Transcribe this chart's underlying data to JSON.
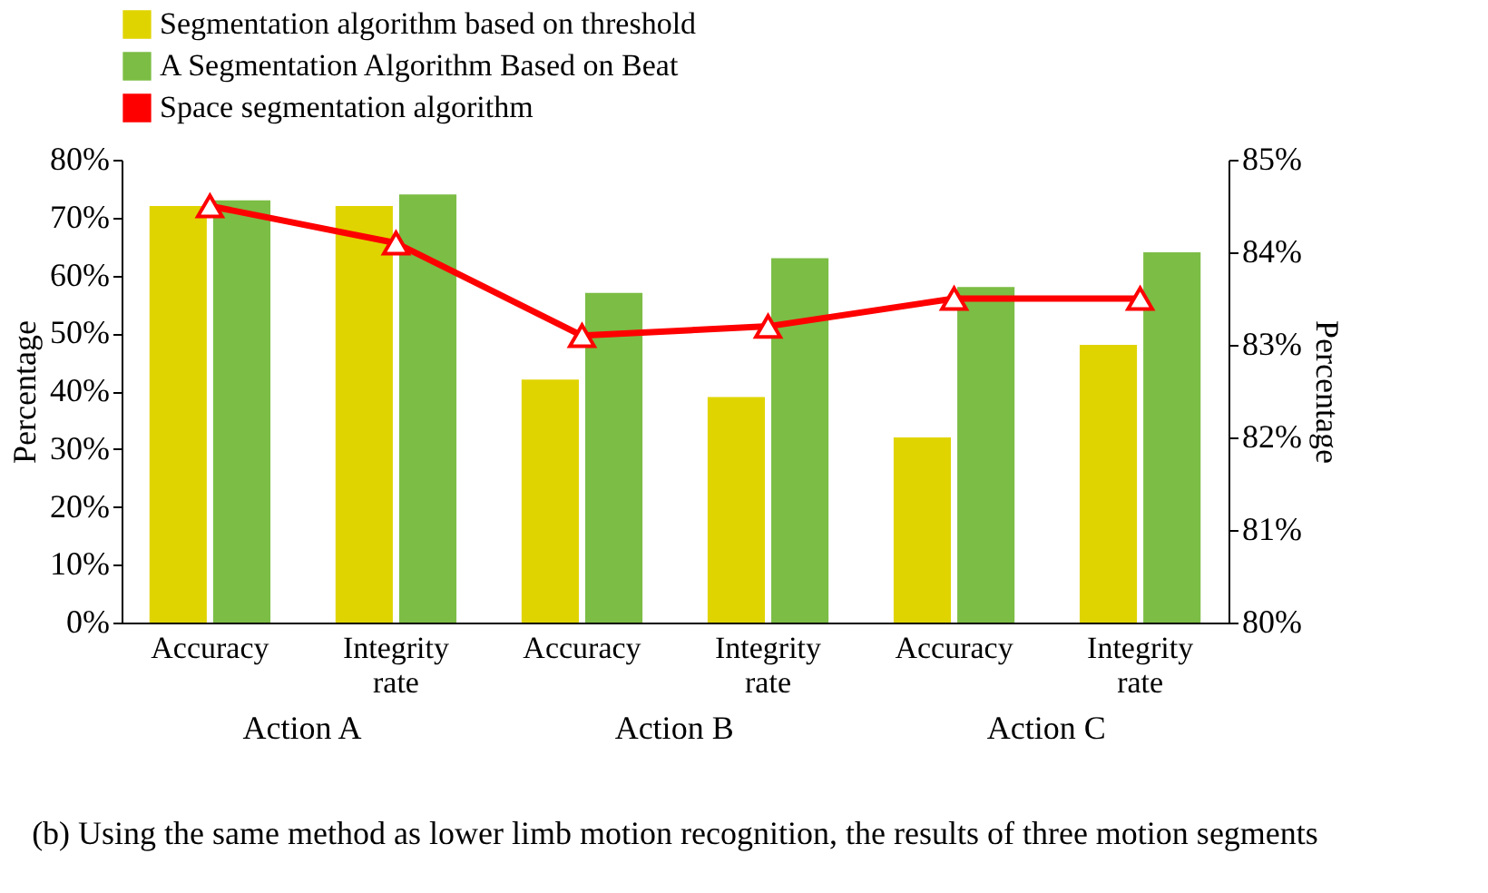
{
  "chart_data": {
    "type": "bar",
    "title": "(b) Using the same method as lower limb motion recognition, the results of three motion segments",
    "categories": [
      "Accuracy",
      "Integrity rate",
      "Accuracy",
      "Integrity rate",
      "Accuracy",
      "Integrity rate"
    ],
    "annotations": [
      "Action A",
      "Action B",
      "Action C"
    ],
    "ylabel": "Percentage",
    "y2label": "Percentage",
    "ylim": [
      0,
      80
    ],
    "yticks": [
      {
        "value": 0,
        "label": "0%"
      },
      {
        "value": 10,
        "label": "10%"
      },
      {
        "value": 20,
        "label": "20%"
      },
      {
        "value": 30,
        "label": "30%"
      },
      {
        "value": 40,
        "label": "40%"
      },
      {
        "value": 50,
        "label": "50%"
      },
      {
        "value": 60,
        "label": "60%"
      },
      {
        "value": 70,
        "label": "70%"
      },
      {
        "value": 80,
        "label": "80%"
      }
    ],
    "y2lim": [
      80,
      85
    ],
    "y2ticks": [
      {
        "value": 80,
        "label": "80%"
      },
      {
        "value": 81,
        "label": "81%"
      },
      {
        "value": 82,
        "label": "82%"
      },
      {
        "value": 83,
        "label": "83%"
      },
      {
        "value": 84,
        "label": "84%"
      },
      {
        "value": 85,
        "label": "85%"
      }
    ],
    "grid": false,
    "legend": "top",
    "series": [
      {
        "name": "Segmentation algorithm based on threshold",
        "color": "#e0d400",
        "values": [
          72,
          72,
          42,
          39,
          32,
          48
        ]
      },
      {
        "name": "A Segmentation Algorithm Based on Beat",
        "color": "#7cbd45",
        "values": [
          73,
          74,
          57,
          63,
          58,
          64
        ]
      },
      {
        "name": "Space segmentation algorithm",
        "type": "line",
        "axis": "y2",
        "color": "#ff0000",
        "marker": "triangle",
        "line_style": "solid",
        "values": [
          84.5,
          84.1,
          83.1,
          83.2,
          83.5,
          83.5
        ]
      }
    ]
  }
}
